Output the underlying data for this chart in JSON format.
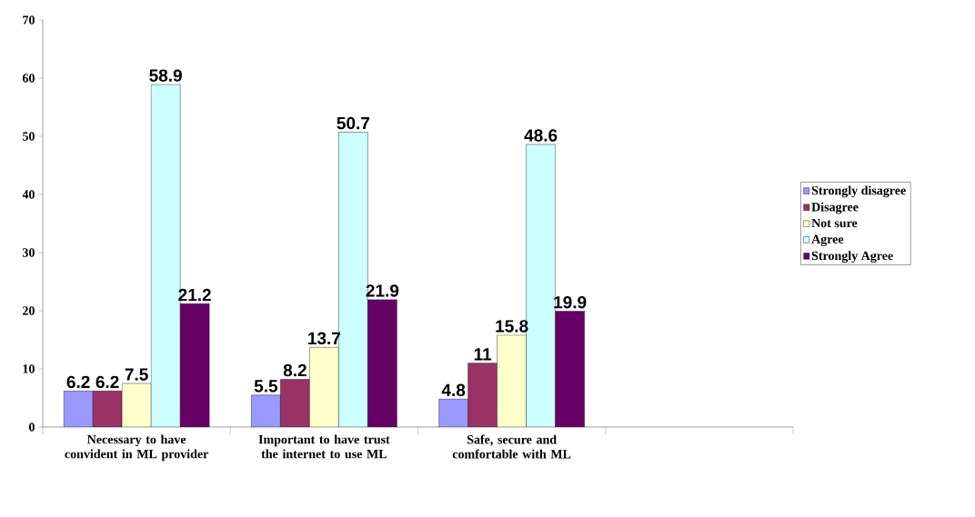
{
  "chart_data": {
    "type": "bar",
    "categories": [
      "Necessary to have convident in ML provider",
      "Important to have trust the internet to use ML",
      "Safe, secure and comfortable with ML",
      null
    ],
    "series": [
      {
        "name": "Strongly disagree",
        "color": "#9999ff",
        "values": [
          6.2,
          5.5,
          4.8,
          null
        ]
      },
      {
        "name": "Disagree",
        "color": "#993366",
        "values": [
          6.2,
          8.2,
          11,
          null
        ]
      },
      {
        "name": "Not sure",
        "color": "#ffffcc",
        "values": [
          7.5,
          13.7,
          15.8,
          null
        ]
      },
      {
        "name": "Agree",
        "color": "#ccffff",
        "values": [
          58.9,
          50.7,
          48.6,
          null
        ]
      },
      {
        "name": "Strongly Agree",
        "color": "#660066",
        "values": [
          21.2,
          21.9,
          19.9,
          null
        ]
      }
    ],
    "ylim": [
      0,
      70
    ],
    "yticks": [
      0,
      10,
      20,
      30,
      40,
      50,
      60,
      70
    ],
    "data_labels": true,
    "grid": false,
    "legend": "right"
  }
}
